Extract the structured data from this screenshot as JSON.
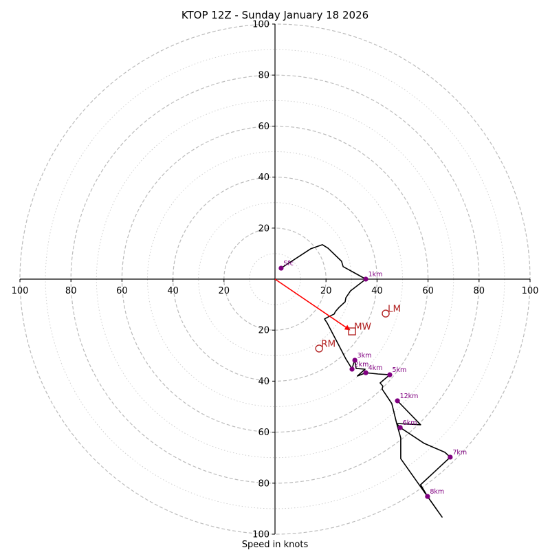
{
  "chart_data": {
    "type": "line",
    "title": "KTOP 12Z - Sunday January 18 2026",
    "xlabel": "Speed in knots",
    "ylabel": "",
    "xlim": [
      -100,
      100
    ],
    "ylim": [
      -100,
      100
    ],
    "grid": true,
    "x_ticks": [
      -100,
      -80,
      -60,
      -40,
      -20,
      20,
      40,
      60,
      80,
      100
    ],
    "x_tick_labels": [
      "100",
      "80",
      "60",
      "40",
      "20",
      "20",
      "40",
      "60",
      "80",
      "100"
    ],
    "y_ticks": [
      100,
      80,
      60,
      40,
      20,
      -20,
      -40,
      -60,
      -80,
      -100
    ],
    "y_tick_labels": [
      "100",
      "80",
      "60",
      "40",
      "20",
      "20",
      "40",
      "60",
      "80",
      "100"
    ],
    "rings": {
      "dashed": [
        20,
        40,
        60,
        80,
        100
      ],
      "dotted": [
        10,
        30,
        50,
        70,
        90
      ]
    },
    "series": [
      {
        "name": "hodograph",
        "color": "#000000",
        "points": [
          [
            2.4,
            4.3
          ],
          [
            14.0,
            11.9
          ],
          [
            18.6,
            13.5
          ],
          [
            20.8,
            12.1
          ],
          [
            26.1,
            7.0
          ],
          [
            26.7,
            4.9
          ],
          [
            35.6,
            0.0
          ],
          [
            29.6,
            -4.6
          ],
          [
            27.8,
            -7.3
          ],
          [
            27.5,
            -8.9
          ],
          [
            25.1,
            -11.1
          ],
          [
            23.7,
            -12.7
          ],
          [
            23.2,
            -13.7
          ],
          [
            21.3,
            -14.6
          ],
          [
            19.4,
            -15.6
          ],
          [
            20.5,
            -17.3
          ],
          [
            22.6,
            -21.3
          ],
          [
            25.1,
            -26.1
          ],
          [
            27.8,
            -31.3
          ],
          [
            29.6,
            -34.2
          ],
          [
            30.2,
            -35.3
          ],
          [
            30.7,
            -33.4
          ],
          [
            31.3,
            -31.8
          ],
          [
            31.8,
            -35.0
          ],
          [
            35.3,
            -35.3
          ],
          [
            32.3,
            -38.0
          ],
          [
            35.6,
            -36.7
          ],
          [
            40.4,
            -37.2
          ],
          [
            45.0,
            -37.5
          ],
          [
            41.2,
            -40.7
          ],
          [
            42.3,
            -42.0
          ],
          [
            42.0,
            -43.1
          ],
          [
            45.8,
            -48.8
          ],
          [
            47.7,
            -56.6
          ],
          [
            49.1,
            -58.2
          ],
          [
            58.5,
            -64.4
          ],
          [
            66.6,
            -67.9
          ],
          [
            68.7,
            -69.8
          ],
          [
            57.1,
            -80.6
          ],
          [
            59.8,
            -85.2
          ],
          [
            65.5,
            -93.3
          ],
          [
            49.3,
            -70.4
          ],
          [
            49.3,
            -62.3
          ],
          [
            47.7,
            -56.6
          ],
          [
            57.1,
            -57.1
          ],
          [
            48.0,
            -47.7
          ]
        ]
      }
    ],
    "height_markers": [
      {
        "label": "Sfc",
        "u": 2.4,
        "v": 4.3
      },
      {
        "label": "1km",
        "u": 35.6,
        "v": 0.0
      },
      {
        "label": "2km",
        "u": 30.2,
        "v": -35.3
      },
      {
        "label": "3km",
        "u": 31.3,
        "v": -31.8
      },
      {
        "label": "4km",
        "u": 35.6,
        "v": -36.7
      },
      {
        "label": "5km",
        "u": 45.0,
        "v": -37.5
      },
      {
        "label": "6km",
        "u": 49.1,
        "v": -58.2
      },
      {
        "label": "7km",
        "u": 68.7,
        "v": -69.8
      },
      {
        "label": "8km",
        "u": 59.8,
        "v": -85.2
      },
      {
        "label": "12km",
        "u": 48.0,
        "v": -47.7
      }
    ],
    "storm_motions": [
      {
        "label": "LM",
        "u": 43.4,
        "v": -13.5,
        "marker": "circle"
      },
      {
        "label": "MW",
        "u": 30.2,
        "v": -20.5,
        "marker": "square"
      },
      {
        "label": "RM",
        "u": 17.3,
        "v": -27.2,
        "marker": "circle"
      }
    ],
    "mean_wind_vector": {
      "from": [
        0,
        0
      ],
      "to": [
        30.2,
        -20.5
      ]
    },
    "colors": {
      "hodograph": "#000000",
      "height_marker": "#800080",
      "storm_motion": "#b22222",
      "mean_wind_arrow": "#ff0000",
      "grid": "#bbbbbb"
    }
  }
}
